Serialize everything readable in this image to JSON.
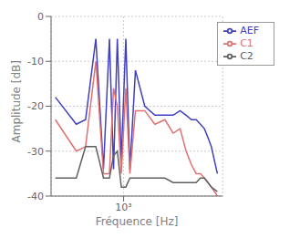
{
  "chart_data": {
    "type": "line",
    "title": "",
    "xlabel": "Fréquence [Hz]",
    "ylabel": "Amplitude [dB]",
    "log": "x",
    "grid": true,
    "legend": "upper right",
    "xlim": [
      200,
      9000
    ],
    "xticks": [
      {
        "value": 1000,
        "label": "10³"
      }
    ],
    "ylim": [
      -40,
      0
    ],
    "yticks": [
      0,
      -10,
      -20,
      -30,
      -40
    ],
    "x": [
      220,
      350,
      430,
      540,
      640,
      730,
      800,
      870,
      950,
      1050,
      1150,
      1300,
      1600,
      2000,
      2500,
      3000,
      3500,
      4000,
      4500,
      5000,
      5500,
      6000,
      6500,
      7000,
      8000
    ],
    "series": [
      {
        "name": "AEF",
        "color": "#4040c0",
        "values": [
          -18,
          -24,
          -23,
          -5,
          -34,
          -5,
          -34,
          -5,
          -32,
          -5,
          -34,
          -12,
          -20,
          -22,
          -22,
          -22,
          -21,
          -22,
          -23,
          -23,
          -24,
          -25,
          -27,
          -29,
          -35
        ]
      },
      {
        "name": "C1",
        "color": "#e07070",
        "values": [
          -23,
          -30,
          -29,
          -10,
          -35,
          -35,
          -16,
          -20,
          -35,
          -16,
          -35,
          -21,
          -21,
          -24,
          -23,
          -26,
          -25,
          -30,
          -33,
          -35,
          -35,
          -36,
          -37,
          -38,
          -40
        ]
      },
      {
        "name": "C2",
        "color": "#606060",
        "values": [
          -36,
          -36,
          -29,
          -29,
          -36,
          -36,
          -31,
          -30,
          -38,
          -38,
          -36,
          -36,
          -36,
          -36,
          -36,
          -37,
          -37,
          -37,
          -37,
          -37,
          -36,
          -36,
          -37,
          -38,
          -39
        ]
      }
    ]
  }
}
